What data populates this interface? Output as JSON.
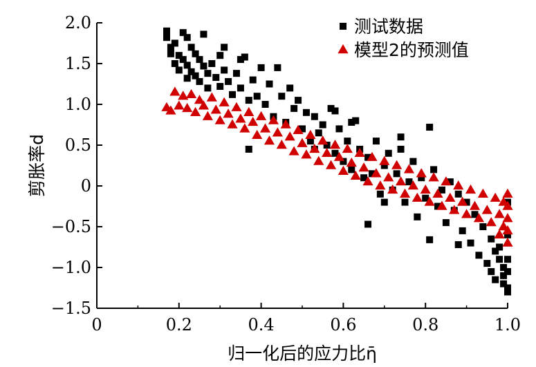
{
  "chart_data": {
    "type": "scatter",
    "xlabel": "归一化后的应力比η̄",
    "ylabel": "剪胀率d",
    "xlim": [
      0,
      1.0
    ],
    "ylim": [
      -1.5,
      2.0
    ],
    "xticks": [
      0,
      0.2,
      0.4,
      0.6,
      0.8,
      1.0
    ],
    "xtick_labels": [
      "0",
      "0.2",
      "0.4",
      "0.6",
      "0.8",
      "1.0"
    ],
    "yticks": [
      -1.5,
      -1.0,
      -0.5,
      0,
      0.5,
      1.0,
      1.5,
      2.0
    ],
    "ytick_labels": [
      "−1.5",
      "−1.0",
      "−0.5",
      "0",
      "0.5",
      "1.0",
      "1.5",
      "2.0"
    ],
    "grid": false,
    "legend_position": "top-right",
    "colors": {
      "measured": "#000000",
      "predicted": "#d10000"
    },
    "series": [
      {
        "name": "测试数据",
        "marker": "square",
        "color": "#000000",
        "points": [
          [
            0.17,
            1.9
          ],
          [
            0.17,
            1.82
          ],
          [
            0.18,
            1.7
          ],
          [
            0.18,
            1.62
          ],
          [
            0.19,
            1.75
          ],
          [
            0.19,
            1.5
          ],
          [
            0.2,
            1.6
          ],
          [
            0.2,
            1.42
          ],
          [
            0.21,
            1.88
          ],
          [
            0.21,
            1.55
          ],
          [
            0.22,
            1.82
          ],
          [
            0.22,
            1.48
          ],
          [
            0.22,
            1.32
          ],
          [
            0.23,
            1.7
          ],
          [
            0.23,
            1.4
          ],
          [
            0.24,
            1.62
          ],
          [
            0.24,
            1.35
          ],
          [
            0.25,
            1.55
          ],
          [
            0.25,
            1.28
          ],
          [
            0.26,
            1.86
          ],
          [
            0.26,
            1.47
          ],
          [
            0.27,
            1.38
          ],
          [
            0.27,
            1.2
          ],
          [
            0.28,
            1.5
          ],
          [
            0.29,
            1.33
          ],
          [
            0.3,
            1.6
          ],
          [
            0.3,
            1.22
          ],
          [
            0.31,
            1.7
          ],
          [
            0.31,
            1.42
          ],
          [
            0.32,
            1.28
          ],
          [
            0.33,
            1.12
          ],
          [
            0.34,
            1.38
          ],
          [
            0.35,
            1.55
          ],
          [
            0.35,
            1.2
          ],
          [
            0.36,
            1.58
          ],
          [
            0.37,
            1.05
          ],
          [
            0.37,
            0.45
          ],
          [
            0.38,
            1.3
          ],
          [
            0.39,
            1.1
          ],
          [
            0.4,
            1.45
          ],
          [
            0.41,
            1.0
          ],
          [
            0.42,
            1.25
          ],
          [
            0.43,
            0.85
          ],
          [
            0.44,
            1.45
          ],
          [
            0.45,
            1.1
          ],
          [
            0.46,
            0.78
          ],
          [
            0.47,
            1.2
          ],
          [
            0.48,
            0.95
          ],
          [
            0.49,
            1.05
          ],
          [
            0.5,
            0.7
          ],
          [
            0.51,
            0.9
          ],
          [
            0.52,
            0.55
          ],
          [
            0.53,
            0.85
          ],
          [
            0.54,
            0.65
          ],
          [
            0.55,
            0.75
          ],
          [
            0.56,
            0.5
          ],
          [
            0.57,
            0.95
          ],
          [
            0.58,
            0.4
          ],
          [
            0.59,
            0.7
          ],
          [
            0.6,
            0.3
          ],
          [
            0.61,
            0.55
          ],
          [
            0.62,
            0.2
          ],
          [
            0.63,
            0.8
          ],
          [
            0.64,
            0.45
          ],
          [
            0.65,
            0.1
          ],
          [
            0.66,
            0.35
          ],
          [
            0.66,
            -0.47
          ],
          [
            0.67,
            0.15
          ],
          [
            0.68,
            0.55
          ],
          [
            0.69,
            -0.1
          ],
          [
            0.7,
            0.25
          ],
          [
            0.71,
            0.4
          ],
          [
            0.72,
            -0.05
          ],
          [
            0.73,
            0.15
          ],
          [
            0.74,
            0.45
          ],
          [
            0.75,
            -0.2
          ],
          [
            0.76,
            0.05
          ],
          [
            0.77,
            0.3
          ],
          [
            0.78,
            -0.38
          ],
          [
            0.79,
            0.1
          ],
          [
            0.8,
            -0.15
          ],
          [
            0.81,
            0.72
          ],
          [
            0.81,
            -0.66
          ],
          [
            0.82,
            0.2
          ],
          [
            0.83,
            -0.25
          ],
          [
            0.84,
            -0.05
          ],
          [
            0.85,
            -0.45
          ],
          [
            0.86,
            0.05
          ],
          [
            0.87,
            -0.3
          ],
          [
            0.88,
            -0.1
          ],
          [
            0.89,
            -0.55
          ],
          [
            0.9,
            -0.2
          ],
          [
            0.91,
            -0.7
          ],
          [
            0.92,
            -0.35
          ],
          [
            0.93,
            -0.85
          ],
          [
            0.94,
            -0.5
          ],
          [
            0.95,
            -0.95
          ],
          [
            0.96,
            -0.65
          ],
          [
            0.96,
            -1.05
          ],
          [
            0.97,
            -0.8
          ],
          [
            0.97,
            -1.15
          ],
          [
            0.98,
            -0.9
          ],
          [
            0.98,
            -0.75
          ],
          [
            0.99,
            -1.2
          ],
          [
            0.99,
            -1.0
          ],
          [
            0.99,
            -1.1
          ],
          [
            1.0,
            -1.3
          ],
          [
            1.0,
            -1.25
          ],
          [
            1.0,
            -1.05
          ],
          [
            1.0,
            -0.9
          ],
          [
            1.0,
            -0.6
          ],
          [
            1.0,
            -0.2
          ],
          [
            0.62,
            0.78
          ],
          [
            0.58,
            0.92
          ],
          [
            0.7,
            -0.2
          ],
          [
            0.88,
            -0.72
          ],
          [
            0.74,
            0.6
          ],
          [
            0.53,
            0.45
          ]
        ]
      },
      {
        "name": "模型2的预测值",
        "marker": "triangle",
        "color": "#d10000",
        "points": [
          [
            0.17,
            0.96
          ],
          [
            0.18,
            0.92
          ],
          [
            0.19,
            1.15
          ],
          [
            0.2,
            0.98
          ],
          [
            0.21,
            1.1
          ],
          [
            0.22,
            0.95
          ],
          [
            0.23,
            1.12
          ],
          [
            0.24,
            0.9
          ],
          [
            0.25,
            1.05
          ],
          [
            0.26,
            0.98
          ],
          [
            0.27,
            0.85
          ],
          [
            0.28,
            1.08
          ],
          [
            0.29,
            0.93
          ],
          [
            0.3,
            0.8
          ],
          [
            0.31,
            1.02
          ],
          [
            0.32,
            0.88
          ],
          [
            0.33,
            0.75
          ],
          [
            0.34,
            0.96
          ],
          [
            0.35,
            0.82
          ],
          [
            0.36,
            0.7
          ],
          [
            0.37,
            0.9
          ],
          [
            0.38,
            0.78
          ],
          [
            0.39,
            0.62
          ],
          [
            0.4,
            0.85
          ],
          [
            0.41,
            0.7
          ],
          [
            0.42,
            0.55
          ],
          [
            0.43,
            0.8
          ],
          [
            0.44,
            0.65
          ],
          [
            0.45,
            0.5
          ],
          [
            0.46,
            0.75
          ],
          [
            0.47,
            0.6
          ],
          [
            0.48,
            0.42
          ],
          [
            0.49,
            0.68
          ],
          [
            0.5,
            0.52
          ],
          [
            0.51,
            0.38
          ],
          [
            0.52,
            0.62
          ],
          [
            0.53,
            0.45
          ],
          [
            0.54,
            0.3
          ],
          [
            0.55,
            0.55
          ],
          [
            0.56,
            0.4
          ],
          [
            0.57,
            0.25
          ],
          [
            0.58,
            0.5
          ],
          [
            0.59,
            0.35
          ],
          [
            0.6,
            0.18
          ],
          [
            0.61,
            0.45
          ],
          [
            0.62,
            0.28
          ],
          [
            0.63,
            0.12
          ],
          [
            0.64,
            0.4
          ],
          [
            0.65,
            0.22
          ],
          [
            0.66,
            0.05
          ],
          [
            0.67,
            0.35
          ],
          [
            0.68,
            0.15
          ],
          [
            0.69,
            0.0
          ],
          [
            0.7,
            0.3
          ],
          [
            0.71,
            0.1
          ],
          [
            0.72,
            -0.05
          ],
          [
            0.73,
            0.25
          ],
          [
            0.74,
            0.05
          ],
          [
            0.75,
            -0.1
          ],
          [
            0.76,
            0.2
          ],
          [
            0.77,
            0.0
          ],
          [
            0.78,
            -0.15
          ],
          [
            0.79,
            0.15
          ],
          [
            0.8,
            -0.05
          ],
          [
            0.81,
            -0.2
          ],
          [
            0.82,
            0.1
          ],
          [
            0.83,
            -0.1
          ],
          [
            0.84,
            -0.25
          ],
          [
            0.85,
            0.05
          ],
          [
            0.86,
            -0.15
          ],
          [
            0.87,
            -0.3
          ],
          [
            0.88,
            0.0
          ],
          [
            0.89,
            -0.2
          ],
          [
            0.9,
            -0.35
          ],
          [
            0.91,
            -0.05
          ],
          [
            0.92,
            -0.25
          ],
          [
            0.93,
            -0.4
          ],
          [
            0.94,
            -0.1
          ],
          [
            0.95,
            -0.3
          ],
          [
            0.96,
            -0.45
          ],
          [
            0.97,
            -0.15
          ],
          [
            0.98,
            -0.35
          ],
          [
            0.99,
            -0.2
          ],
          [
            1.0,
            -0.7
          ],
          [
            1.0,
            -0.55
          ],
          [
            1.0,
            -0.4
          ],
          [
            1.0,
            -0.25
          ],
          [
            1.0,
            -0.1
          ],
          [
            0.99,
            -0.5
          ],
          [
            0.98,
            -0.6
          ]
        ]
      }
    ]
  }
}
